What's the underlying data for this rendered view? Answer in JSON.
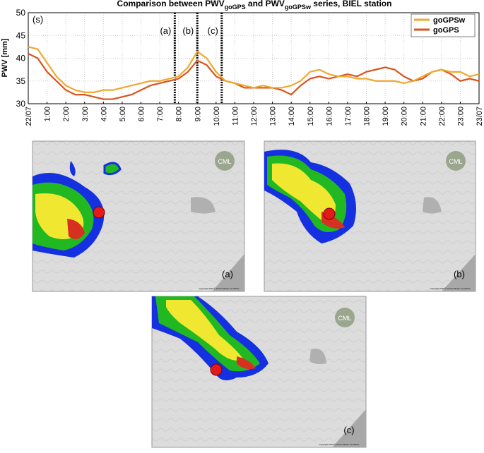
{
  "chart_data": {
    "type": "line",
    "title": {
      "text1": "Comparison between PWV",
      "sub1": "goGPS",
      "text2": " and PWV",
      "sub2": "goGPSw",
      "text3": " series, BIEL station"
    },
    "y_label": "PWV [mm]",
    "panel_label": "(s)",
    "x": [
      0,
      0.5,
      1,
      1.5,
      2,
      2.5,
      3,
      3.5,
      4,
      4.5,
      5,
      5.5,
      6,
      6.5,
      7,
      7.5,
      8,
      8.5,
      9,
      9.5,
      10,
      10.5,
      11,
      11.5,
      12,
      12.5,
      13,
      13.5,
      14,
      14.5,
      15,
      15.5,
      16,
      16.5,
      17,
      17.5,
      18,
      18.5,
      19,
      19.5,
      20,
      20.5,
      21,
      21.5,
      22,
      22.5,
      23,
      23.5,
      24
    ],
    "series": [
      {
        "name": "goGPSw",
        "color": "#f0a830",
        "values": [
          42.5,
          42,
          39,
          36,
          34,
          33,
          32.5,
          32.5,
          33,
          33,
          33.5,
          34,
          34.5,
          35,
          35,
          35.5,
          36,
          38,
          41.5,
          40,
          37,
          35,
          34.5,
          34,
          33.5,
          34,
          33.5,
          33.5,
          34,
          35,
          37,
          37.5,
          36.5,
          36,
          36,
          35.5,
          35.5,
          35,
          35,
          35,
          34.5,
          35,
          36,
          37,
          37.5,
          37,
          37,
          36,
          36.5
        ]
      },
      {
        "name": "goGPS",
        "color": "#d9541e",
        "values": [
          41,
          40,
          37,
          35,
          33,
          32,
          32,
          31.5,
          31,
          31,
          31.5,
          32,
          33,
          34,
          34.5,
          35,
          35.5,
          37,
          39.5,
          38.5,
          36,
          35,
          34.5,
          33.5,
          33.5,
          33.5,
          33.5,
          33,
          32,
          34,
          35.5,
          36,
          35.5,
          36,
          36.5,
          36,
          37,
          37.5,
          38,
          37.5,
          36,
          35,
          35.5,
          37,
          37.5,
          36.5,
          35,
          35.5,
          35
        ]
      }
    ],
    "markers": [
      {
        "x": 7.8,
        "label": "(a)"
      },
      {
        "x": 9.0,
        "label": "(b)"
      },
      {
        "x": 10.3,
        "label": "(c)"
      }
    ],
    "xlim": [
      0,
      24
    ],
    "xticks": [
      {
        "value": 0,
        "label": "22/07"
      },
      {
        "value": 1,
        "label": "1:00"
      },
      {
        "value": 2,
        "label": "2:00"
      },
      {
        "value": 3,
        "label": "3:00"
      },
      {
        "value": 4,
        "label": "4:00"
      },
      {
        "value": 5,
        "label": "5:00"
      },
      {
        "value": 6,
        "label": "6:00"
      },
      {
        "value": 7,
        "label": "7:00"
      },
      {
        "value": 8,
        "label": "8:00"
      },
      {
        "value": 9,
        "label": "9:00"
      },
      {
        "value": 10,
        "label": "10:00"
      },
      {
        "value": 11,
        "label": "11:00"
      },
      {
        "value": 12,
        "label": "12:00"
      },
      {
        "value": 13,
        "label": "13:00"
      },
      {
        "value": 14,
        "label": "14:00"
      },
      {
        "value": 15,
        "label": "15:00"
      },
      {
        "value": 16,
        "label": "16:00"
      },
      {
        "value": 17,
        "label": "17:00"
      },
      {
        "value": 18,
        "label": "18:00"
      },
      {
        "value": 19,
        "label": "19:00"
      },
      {
        "value": 20,
        "label": "20:00"
      },
      {
        "value": 21,
        "label": "21:00"
      },
      {
        "value": 22,
        "label": "22:00"
      },
      {
        "value": 23,
        "label": "23:00"
      },
      {
        "value": 24,
        "label": "23/07"
      }
    ],
    "ylim": [
      30,
      50
    ],
    "yticks": [
      30,
      35,
      40,
      45,
      50
    ],
    "grid": true,
    "legend": "upper right"
  },
  "maps": [
    {
      "label": "(a)",
      "logo": "CML",
      "copyright": "Copyright 2016 © Centro Meteo Lombardo"
    },
    {
      "label": "(b)",
      "logo": "CML",
      "copyright": "Copyright 2016 © Centro Meteo Lombardo"
    },
    {
      "label": "(c)",
      "logo": "CML",
      "copyright": "Copyright 2016 © Centro Meteo Lombardo"
    }
  ]
}
